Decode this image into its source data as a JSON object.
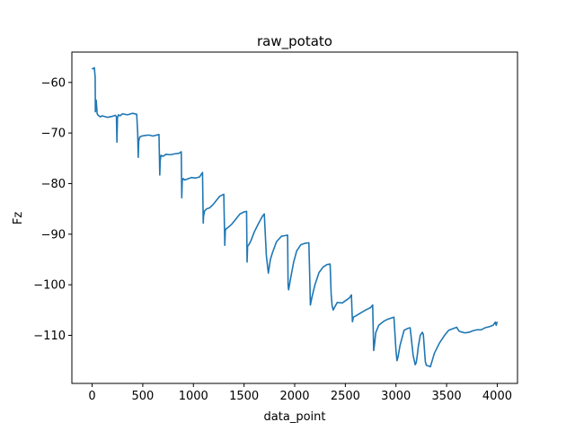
{
  "chart_data": {
    "type": "line",
    "title": "raw_potato",
    "xlabel": "data_point",
    "ylabel": "Fz",
    "xlim": [
      -200,
      4200
    ],
    "ylim": [
      -119.5,
      -54
    ],
    "xticks": [
      0,
      500,
      1000,
      1500,
      2000,
      2500,
      3000,
      3500,
      4000
    ],
    "xtick_labels": [
      "0",
      "500",
      "1000",
      "1500",
      "2000",
      "2500",
      "3000",
      "3500",
      "4000"
    ],
    "yticks": [
      -60,
      -70,
      -80,
      -90,
      -100,
      -110
    ],
    "ytick_labels": [
      "−60",
      "−70",
      "−80",
      "−90",
      "−100",
      "−110"
    ],
    "grid": false,
    "colors": {
      "series": "#1f77b4"
    },
    "series": [
      {
        "x": [
          0,
          10,
          20,
          22,
          30,
          32,
          40,
          50,
          60,
          80,
          100,
          150,
          200,
          230,
          240,
          245,
          250,
          260,
          275,
          300,
          350,
          400,
          440,
          450,
          455,
          460,
          470,
          490,
          520,
          560,
          600,
          660,
          668,
          672,
          680,
          700,
          730,
          770,
          820,
          860,
          880,
          885,
          890,
          900,
          915,
          940,
          980,
          1020,
          1060,
          1090,
          1097,
          1100,
          1110,
          1130,
          1160,
          1200,
          1260,
          1300,
          1310,
          1315,
          1320,
          1340,
          1380,
          1420,
          1460,
          1500,
          1525,
          1530,
          1535,
          1550,
          1570,
          1600,
          1640,
          1680,
          1700,
          1720,
          1740,
          1760,
          1780,
          1820,
          1870,
          1900,
          1930,
          1935,
          1940,
          1960,
          1990,
          2020,
          2060,
          2100,
          2140,
          2150,
          2155,
          2170,
          2200,
          2240,
          2280,
          2320,
          2350,
          2360,
          2370,
          2380,
          2390,
          2420,
          2470,
          2540,
          2560,
          2570,
          2580,
          2600,
          2640,
          2700,
          2750,
          2770,
          2780,
          2790,
          2800,
          2830,
          2880,
          2920,
          2980,
          3000,
          3010,
          3020,
          3040,
          3080,
          3120,
          3140,
          3170,
          3190,
          3200,
          3210,
          3220,
          3240,
          3260,
          3270,
          3290,
          3300,
          3340,
          3380,
          3430,
          3480,
          3520,
          3560,
          3600,
          3620,
          3640,
          3680,
          3720,
          3760,
          3800,
          3840,
          3880,
          3920,
          3960,
          3980,
          3990,
          4000
        ],
        "y": [
          -57.4,
          -57.2,
          -57.3,
          -57.1,
          -59.0,
          -65.8,
          -63.5,
          -66.2,
          -66.5,
          -66.8,
          -66.6,
          -66.9,
          -66.7,
          -66.5,
          -66.8,
          -71.8,
          -67.0,
          -66.4,
          -66.6,
          -66.2,
          -66.4,
          -66.1,
          -66.3,
          -70.0,
          -74.8,
          -71.6,
          -70.8,
          -70.6,
          -70.5,
          -70.4,
          -70.6,
          -70.3,
          -78.3,
          -75.5,
          -74.4,
          -74.6,
          -74.2,
          -74.3,
          -74.1,
          -74.0,
          -73.7,
          -82.8,
          -79.4,
          -79.0,
          -79.3,
          -79.1,
          -78.8,
          -78.9,
          -78.7,
          -77.8,
          -87.8,
          -86.5,
          -85.4,
          -85.0,
          -84.8,
          -84.0,
          -82.5,
          -82.1,
          -92.2,
          -89.3,
          -89.0,
          -88.7,
          -88.0,
          -87.0,
          -86.0,
          -85.6,
          -85.5,
          -95.5,
          -92.4,
          -92.0,
          -91.2,
          -89.6,
          -88.0,
          -86.5,
          -86.0,
          -94.2,
          -97.7,
          -95.0,
          -93.7,
          -91.5,
          -90.4,
          -90.3,
          -90.2,
          -100.0,
          -101.0,
          -98.7,
          -95.5,
          -93.3,
          -92.1,
          -91.8,
          -91.7,
          -99.5,
          -104.0,
          -102.5,
          -100.0,
          -97.6,
          -96.5,
          -96.0,
          -95.9,
          -101.8,
          -104.2,
          -105.0,
          -104.6,
          -103.5,
          -103.6,
          -102.6,
          -102.0,
          -107.3,
          -106.4,
          -106.2,
          -105.7,
          -105.0,
          -104.5,
          -104.0,
          -113.0,
          -111.5,
          -109.5,
          -108.0,
          -107.2,
          -106.8,
          -106.4,
          -113.0,
          -115.0,
          -114.3,
          -112.0,
          -109.0,
          -108.6,
          -108.5,
          -114.0,
          -115.8,
          -115.4,
          -114.0,
          -112.3,
          -110.0,
          -109.4,
          -109.8,
          -115.2,
          -115.9,
          -116.2,
          -113.5,
          -111.5,
          -110.0,
          -109.0,
          -108.7,
          -108.4,
          -109.1,
          -109.3,
          -109.5,
          -109.4,
          -109.1,
          -108.9,
          -108.9,
          -108.5,
          -108.3,
          -108.0,
          -107.4,
          -108.0,
          -107.3
        ]
      }
    ]
  }
}
